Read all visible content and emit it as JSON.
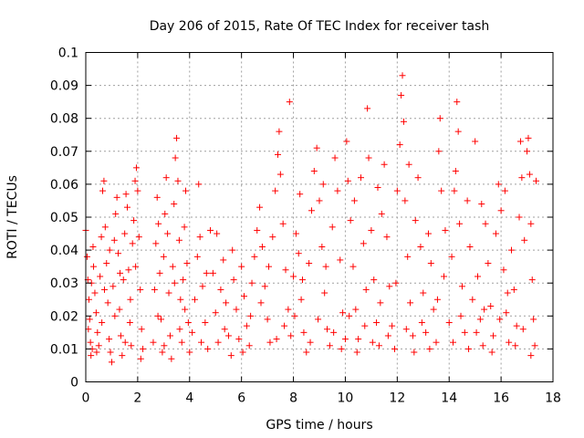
{
  "chart_data": {
    "type": "scatter",
    "title": "Day 206 of 2015, Rate Of TEC Index for receiver tash",
    "xlabel": "GPS time / hours",
    "ylabel": "ROTI / TECUs",
    "xlim": [
      0,
      18
    ],
    "ylim": [
      0,
      0.1
    ],
    "x_ticks": [
      "0",
      "2",
      "4",
      "6",
      "8",
      "10",
      "12",
      "14",
      "16",
      "18"
    ],
    "y_ticks": [
      "0",
      "0.01",
      "0.02",
      "0.03",
      "0.04",
      "0.05",
      "0.06",
      "0.07",
      "0.08",
      "0.09",
      "0.1"
    ],
    "grid": true,
    "marker": "+",
    "color": "#ff0000",
    "series": [
      {
        "points": [
          [
            0.0,
            0.046
          ],
          [
            0.05,
            0.038
          ],
          [
            0.08,
            0.031
          ],
          [
            0.12,
            0.025
          ],
          [
            0.15,
            0.019
          ],
          [
            0.18,
            0.012
          ],
          [
            0.2,
            0.008
          ],
          [
            0.25,
            0.01
          ],
          [
            0.28,
            0.041
          ],
          [
            0.3,
            0.035
          ],
          [
            0.35,
            0.027
          ],
          [
            0.4,
            0.021
          ],
          [
            0.45,
            0.015
          ],
          [
            0.5,
            0.011
          ],
          [
            0.55,
            0.032
          ],
          [
            0.6,
            0.044
          ],
          [
            0.65,
            0.058
          ],
          [
            0.7,
            0.061
          ],
          [
            0.75,
            0.047
          ],
          [
            0.8,
            0.036
          ],
          [
            0.85,
            0.024
          ],
          [
            0.9,
            0.013
          ],
          [
            0.95,
            0.009
          ],
          [
            1.0,
            0.006
          ],
          [
            1.05,
            0.029
          ],
          [
            1.1,
            0.043
          ],
          [
            1.15,
            0.051
          ],
          [
            1.2,
            0.056
          ],
          [
            1.25,
            0.039
          ],
          [
            1.3,
            0.022
          ],
          [
            1.35,
            0.014
          ],
          [
            1.4,
            0.008
          ],
          [
            1.45,
            0.031
          ],
          [
            1.5,
            0.045
          ],
          [
            1.55,
            0.057
          ],
          [
            1.6,
            0.053
          ],
          [
            1.65,
            0.034
          ],
          [
            1.7,
            0.018
          ],
          [
            1.75,
            0.011
          ],
          [
            1.8,
            0.042
          ],
          [
            1.85,
            0.049
          ],
          [
            1.9,
            0.061
          ],
          [
            1.95,
            0.065
          ],
          [
            2.0,
            0.058
          ],
          [
            2.05,
            0.044
          ],
          [
            2.1,
            0.028
          ],
          [
            2.15,
            0.016
          ],
          [
            2.2,
            0.01
          ],
          [
            0.1,
            0.016
          ],
          [
            0.22,
            0.03
          ],
          [
            0.42,
            0.009
          ],
          [
            0.62,
            0.018
          ],
          [
            0.72,
            0.028
          ],
          [
            0.92,
            0.04
          ],
          [
            1.12,
            0.02
          ],
          [
            1.32,
            0.033
          ],
          [
            1.52,
            0.012
          ],
          [
            1.72,
            0.025
          ],
          [
            1.92,
            0.035
          ],
          [
            2.12,
            0.007
          ],
          [
            2.6,
            0.012
          ],
          [
            2.65,
            0.028
          ],
          [
            2.7,
            0.042
          ],
          [
            2.75,
            0.056
          ],
          [
            2.8,
            0.048
          ],
          [
            2.85,
            0.033
          ],
          [
            2.9,
            0.019
          ],
          [
            2.95,
            0.009
          ],
          [
            3.0,
            0.038
          ],
          [
            3.05,
            0.051
          ],
          [
            3.1,
            0.062
          ],
          [
            3.15,
            0.045
          ],
          [
            3.2,
            0.027
          ],
          [
            3.25,
            0.014
          ],
          [
            3.3,
            0.007
          ],
          [
            3.35,
            0.035
          ],
          [
            3.4,
            0.054
          ],
          [
            3.45,
            0.068
          ],
          [
            3.5,
            0.074
          ],
          [
            3.55,
            0.061
          ],
          [
            3.6,
            0.043
          ],
          [
            3.65,
            0.025
          ],
          [
            3.7,
            0.012
          ],
          [
            3.75,
            0.031
          ],
          [
            3.8,
            0.047
          ],
          [
            3.85,
            0.058
          ],
          [
            3.9,
            0.036
          ],
          [
            3.95,
            0.018
          ],
          [
            4.0,
            0.009
          ],
          [
            2.78,
            0.02
          ],
          [
            3.02,
            0.011
          ],
          [
            3.42,
            0.03
          ],
          [
            3.62,
            0.016
          ],
          [
            3.82,
            0.022
          ],
          [
            4.1,
            0.015
          ],
          [
            4.2,
            0.025
          ],
          [
            4.3,
            0.038
          ],
          [
            4.35,
            0.06
          ],
          [
            4.4,
            0.044
          ],
          [
            4.5,
            0.029
          ],
          [
            4.6,
            0.018
          ],
          [
            4.7,
            0.01
          ],
          [
            4.8,
            0.046
          ],
          [
            4.9,
            0.033
          ],
          [
            5.0,
            0.021
          ],
          [
            5.1,
            0.012
          ],
          [
            5.2,
            0.028
          ],
          [
            5.3,
            0.037
          ],
          [
            5.4,
            0.024
          ],
          [
            5.5,
            0.014
          ],
          [
            5.6,
            0.008
          ],
          [
            5.7,
            0.031
          ],
          [
            5.8,
            0.022
          ],
          [
            5.9,
            0.013
          ],
          [
            6.0,
            0.035
          ],
          [
            6.1,
            0.026
          ],
          [
            6.2,
            0.017
          ],
          [
            6.3,
            0.011
          ],
          [
            6.4,
            0.03
          ],
          [
            6.5,
            0.038
          ],
          [
            6.6,
            0.046
          ],
          [
            6.7,
            0.053
          ],
          [
            6.8,
            0.041
          ],
          [
            6.9,
            0.029
          ],
          [
            7.0,
            0.019
          ],
          [
            7.1,
            0.012
          ],
          [
            7.2,
            0.044
          ],
          [
            7.3,
            0.058
          ],
          [
            7.4,
            0.069
          ],
          [
            7.45,
            0.076
          ],
          [
            7.5,
            0.063
          ],
          [
            7.6,
            0.048
          ],
          [
            7.7,
            0.034
          ],
          [
            7.8,
            0.022
          ],
          [
            7.85,
            0.085
          ],
          [
            7.9,
            0.014
          ],
          [
            8.0,
            0.032
          ],
          [
            8.1,
            0.045
          ],
          [
            8.2,
            0.039
          ],
          [
            8.3,
            0.025
          ],
          [
            8.4,
            0.015
          ],
          [
            8.5,
            0.009
          ],
          [
            8.6,
            0.036
          ],
          [
            8.7,
            0.052
          ],
          [
            8.8,
            0.064
          ],
          [
            8.9,
            0.071
          ],
          [
            9.0,
            0.055
          ],
          [
            9.1,
            0.041
          ],
          [
            9.2,
            0.027
          ],
          [
            9.3,
            0.016
          ],
          [
            9.4,
            0.011
          ],
          [
            9.5,
            0.047
          ],
          [
            9.6,
            0.068
          ],
          [
            9.7,
            0.058
          ],
          [
            9.8,
            0.037
          ],
          [
            9.9,
            0.021
          ],
          [
            10.0,
            0.013
          ],
          [
            10.05,
            0.073
          ],
          [
            10.1,
            0.061
          ],
          [
            10.2,
            0.049
          ],
          [
            10.3,
            0.035
          ],
          [
            10.4,
            0.022
          ],
          [
            10.5,
            0.013
          ],
          [
            10.6,
            0.062
          ],
          [
            10.7,
            0.042
          ],
          [
            10.8,
            0.028
          ],
          [
            10.85,
            0.083
          ],
          [
            10.9,
            0.068
          ],
          [
            11.0,
            0.046
          ],
          [
            11.1,
            0.031
          ],
          [
            11.2,
            0.018
          ],
          [
            11.3,
            0.011
          ],
          [
            11.4,
            0.051
          ],
          [
            11.5,
            0.066
          ],
          [
            11.6,
            0.044
          ],
          [
            11.7,
            0.029
          ],
          [
            11.8,
            0.017
          ],
          [
            11.9,
            0.01
          ],
          [
            12.0,
            0.058
          ],
          [
            12.1,
            0.072
          ],
          [
            12.15,
            0.087
          ],
          [
            12.2,
            0.093
          ],
          [
            12.25,
            0.079
          ],
          [
            12.3,
            0.055
          ],
          [
            12.4,
            0.038
          ],
          [
            12.5,
            0.024
          ],
          [
            12.6,
            0.014
          ],
          [
            12.7,
            0.049
          ],
          [
            12.8,
            0.062
          ],
          [
            12.9,
            0.041
          ],
          [
            13.0,
            0.027
          ],
          [
            13.1,
            0.015
          ],
          [
            13.2,
            0.045
          ],
          [
            13.3,
            0.036
          ],
          [
            13.4,
            0.022
          ],
          [
            13.5,
            0.012
          ],
          [
            13.6,
            0.07
          ],
          [
            13.65,
            0.08
          ],
          [
            13.7,
            0.058
          ],
          [
            13.8,
            0.032
          ],
          [
            14.0,
            0.018
          ],
          [
            14.1,
            0.038
          ],
          [
            14.2,
            0.058
          ],
          [
            14.3,
            0.085
          ],
          [
            14.35,
            0.076
          ],
          [
            14.4,
            0.048
          ],
          [
            14.5,
            0.029
          ],
          [
            14.6,
            0.015
          ],
          [
            14.7,
            0.055
          ],
          [
            14.8,
            0.041
          ],
          [
            14.9,
            0.025
          ],
          [
            15.0,
            0.073
          ],
          [
            15.1,
            0.032
          ],
          [
            15.2,
            0.019
          ],
          [
            15.3,
            0.011
          ],
          [
            15.4,
            0.048
          ],
          [
            15.5,
            0.036
          ],
          [
            15.6,
            0.023
          ],
          [
            15.7,
            0.014
          ],
          [
            15.8,
            0.045
          ],
          [
            15.9,
            0.06
          ],
          [
            16.0,
            0.052
          ],
          [
            16.1,
            0.034
          ],
          [
            16.2,
            0.021
          ],
          [
            16.3,
            0.012
          ],
          [
            16.4,
            0.04
          ],
          [
            16.5,
            0.028
          ],
          [
            16.6,
            0.017
          ],
          [
            16.7,
            0.05
          ],
          [
            16.75,
            0.073
          ],
          [
            16.8,
            0.062
          ],
          [
            16.9,
            0.043
          ],
          [
            17.0,
            0.07
          ],
          [
            17.05,
            0.074
          ],
          [
            17.1,
            0.063
          ],
          [
            17.15,
            0.048
          ],
          [
            17.2,
            0.031
          ],
          [
            17.25,
            0.019
          ],
          [
            17.3,
            0.011
          ],
          [
            17.35,
            0.061
          ],
          [
            4.45,
            0.012
          ],
          [
            4.65,
            0.033
          ],
          [
            5.05,
            0.045
          ],
          [
            5.35,
            0.016
          ],
          [
            5.65,
            0.04
          ],
          [
            6.05,
            0.009
          ],
          [
            6.35,
            0.02
          ],
          [
            6.75,
            0.024
          ],
          [
            7.05,
            0.035
          ],
          [
            7.35,
            0.013
          ],
          [
            7.65,
            0.017
          ],
          [
            8.05,
            0.02
          ],
          [
            8.35,
            0.031
          ],
          [
            8.65,
            0.012
          ],
          [
            8.95,
            0.019
          ],
          [
            9.25,
            0.035
          ],
          [
            9.55,
            0.015
          ],
          [
            9.85,
            0.01
          ],
          [
            10.15,
            0.02
          ],
          [
            10.45,
            0.009
          ],
          [
            10.75,
            0.017
          ],
          [
            11.05,
            0.012
          ],
          [
            11.35,
            0.024
          ],
          [
            11.65,
            0.014
          ],
          [
            11.95,
            0.03
          ],
          [
            12.35,
            0.016
          ],
          [
            12.65,
            0.009
          ],
          [
            12.95,
            0.018
          ],
          [
            13.25,
            0.01
          ],
          [
            13.55,
            0.025
          ],
          [
            14.15,
            0.012
          ],
          [
            14.45,
            0.02
          ],
          [
            14.75,
            0.01
          ],
          [
            15.05,
            0.015
          ],
          [
            15.35,
            0.022
          ],
          [
            15.65,
            0.009
          ],
          [
            15.95,
            0.019
          ],
          [
            16.25,
            0.027
          ],
          [
            16.55,
            0.011
          ],
          [
            16.85,
            0.016
          ],
          [
            17.15,
            0.008
          ],
          [
            13.85,
            0.046
          ],
          [
            14.25,
            0.064
          ],
          [
            15.25,
            0.054
          ],
          [
            16.15,
            0.058
          ],
          [
            12.45,
            0.066
          ],
          [
            11.25,
            0.059
          ],
          [
            10.35,
            0.055
          ],
          [
            9.15,
            0.06
          ],
          [
            8.25,
            0.057
          ]
        ]
      }
    ]
  }
}
